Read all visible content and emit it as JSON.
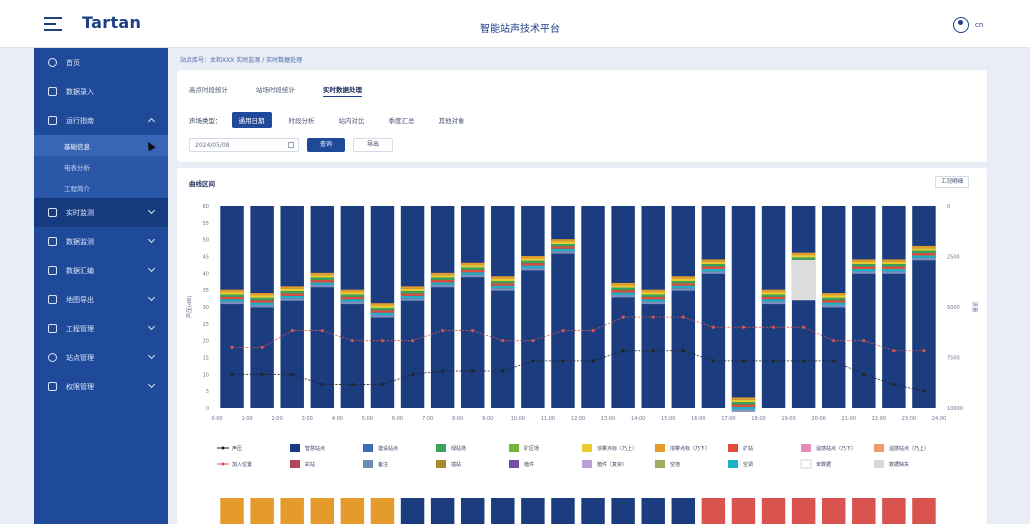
{
  "header": {
    "logo": "Tartan",
    "platform_title": "智能站声技术平台",
    "user": "cn"
  },
  "breadcrumb": "站点库号：太和XXX 实时监测 / 实时数据处理",
  "sidebar": {
    "items": [
      {
        "label": "首页",
        "icon": "home-icon"
      },
      {
        "label": "数据录入",
        "icon": "input-icon"
      },
      {
        "label": "运行指南",
        "icon": "guide-icon",
        "expanded": true,
        "children": [
          {
            "label": "基础信息",
            "active": true
          },
          {
            "label": "电表分析"
          },
          {
            "label": "工程简介"
          }
        ]
      },
      {
        "label": "实时监测",
        "icon": "monitor-icon",
        "active": true
      },
      {
        "label": "数据监测",
        "icon": "data-icon"
      },
      {
        "label": "数据汇编",
        "icon": "compile-icon"
      },
      {
        "label": "地图导出",
        "icon": "map-icon"
      },
      {
        "label": "工程管理",
        "icon": "project-icon"
      },
      {
        "label": "站点管理",
        "icon": "site-icon"
      },
      {
        "label": "权限管理",
        "icon": "permission-icon"
      }
    ]
  },
  "tabs": [
    "高点时段统计",
    "站场时段统计",
    "实时数据处理"
  ],
  "active_tab": 2,
  "filter": {
    "label": "声场类型：",
    "options": [
      "通用日期",
      "时段分析",
      "站内对比",
      "季度汇总",
      "其他对象"
    ],
    "active": 0
  },
  "date_value": "2024/05/08",
  "buttons": {
    "query": "查询",
    "export": "导出",
    "detail": "工况明细"
  },
  "chart_card_title": "曲线区间",
  "chart_data": {
    "type": "bar",
    "categories": [
      "0:00",
      "1:00",
      "2:00",
      "3:00",
      "4:00",
      "5:00",
      "6:00",
      "7:00",
      "8:00",
      "9:00",
      "10:00",
      "11:00",
      "12:00",
      "13:00",
      "14:00",
      "15:00",
      "16:00",
      "17:00",
      "18:00",
      "19:00",
      "20:00",
      "21:00",
      "22:00",
      "23:00",
      "24:00"
    ],
    "y_left_label": "声压(dB)",
    "y_left_ticks": [
      0,
      5,
      10,
      15,
      20,
      25,
      30,
      35,
      40,
      45,
      50,
      55,
      60
    ],
    "y_right_label": "流量",
    "y_right_ticks": [
      0,
      2500,
      5000,
      7500,
      10000
    ],
    "ylim": [
      0,
      60
    ],
    "bar_tops": [
      33,
      32,
      34,
      38,
      33,
      29,
      34,
      38,
      41,
      37,
      43,
      48,
      0,
      35,
      33,
      37,
      42,
      1,
      33,
      44,
      32,
      42,
      42,
      46
    ],
    "band_colors": [
      "#e59a2c",
      "#e7cd32",
      "#3aa25a",
      "#e04d3d",
      "#21b0c3",
      "#7d8fbd"
    ],
    "special_gray_bar": {
      "index": 19,
      "top": 44,
      "bottom": 32
    },
    "line_black": [
      10,
      10,
      10,
      7,
      7,
      7,
      10,
      11,
      11,
      11,
      14,
      14,
      14,
      17,
      17,
      17,
      14,
      14,
      14,
      14,
      14,
      10,
      7,
      5
    ],
    "line_red": [
      18,
      18,
      23,
      23,
      20,
      20,
      20,
      23,
      23,
      20,
      20,
      23,
      23,
      27,
      27,
      27,
      24,
      24,
      24,
      24,
      20,
      20,
      17,
      17
    ],
    "legend": [
      {
        "label": "声压",
        "color": "#222222",
        "kind": "line"
      },
      {
        "label": "智慧站点",
        "color": "#1b3d7f"
      },
      {
        "label": "建设站点",
        "color": "#3c6ab4"
      },
      {
        "label": "绿站场",
        "color": "#3aa25a"
      },
      {
        "label": "矿区场",
        "color": "#71b83a"
      },
      {
        "label": "浓雾点标（乃上）",
        "color": "#e7cd32"
      },
      {
        "label": "浓雾点标（乃下）",
        "color": "#e59a2c"
      },
      {
        "label": "扩站",
        "color": "#e04d3d"
      },
      {
        "label": "遥感站点（乃下）",
        "color": "#e58bb9"
      },
      {
        "label": "遥感站点（乃上）",
        "color": "#f09a6a"
      },
      {
        "label": "加入位置",
        "color": "#d9534f",
        "kind": "line"
      },
      {
        "label": "彩站",
        "color": "#b04a5a"
      },
      {
        "label": "备注",
        "color": "#6a8bb0"
      },
      {
        "label": "插站",
        "color": "#a88a2a"
      },
      {
        "label": "植件",
        "color": "#7a4ca8"
      },
      {
        "label": "植件（复杂）",
        "color": "#b9a0d6"
      },
      {
        "label": "空地",
        "color": "#9fae60"
      },
      {
        "label": "空调",
        "color": "#21b0c3"
      },
      {
        "label": "未数据",
        "color": "#ffffff"
      },
      {
        "label": "数据缺失",
        "color": "#d8d8d8"
      }
    ],
    "bottom_strip_colors": [
      "#e59a2c",
      "#e59a2c",
      "#e59a2c",
      "#e59a2c",
      "#e59a2c",
      "#e59a2c",
      "#1b3d7f",
      "#1b3d7f",
      "#1b3d7f",
      "#1b3d7f",
      "#1b3d7f",
      "#1b3d7f",
      "#1b3d7f",
      "#1b3d7f",
      "#1b3d7f",
      "#1b3d7f",
      "#d9534f",
      "#d9534f",
      "#d9534f",
      "#d9534f",
      "#d9534f",
      "#d9534f",
      "#d9534f",
      "#d9534f"
    ],
    "grid": false,
    "legend_position": "bottom"
  }
}
